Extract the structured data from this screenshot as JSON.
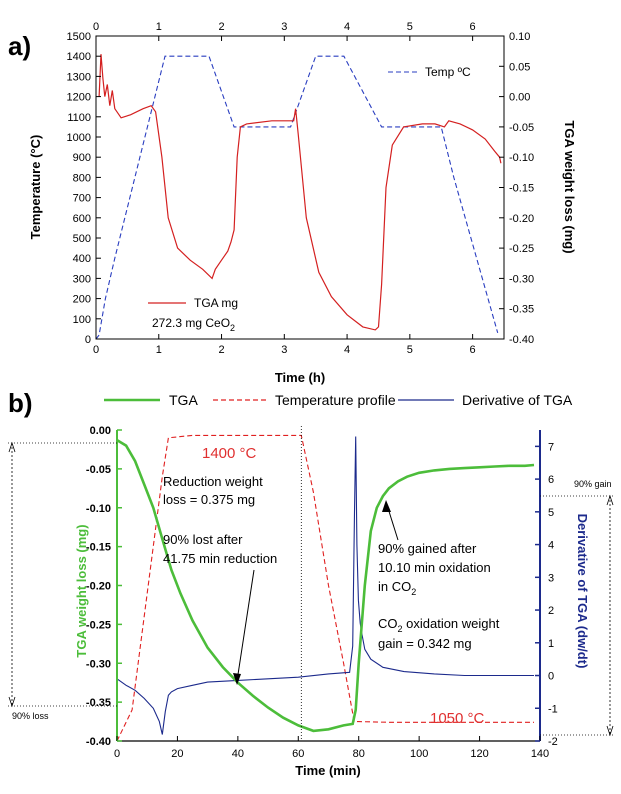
{
  "colors": {
    "tga_a": "#d42020",
    "temp": "#2a3ec0",
    "tga_b": "#4cbd3a",
    "temp_b": "#e02020",
    "deriv": "#1c2a8c"
  },
  "chart_data": [
    {
      "panel": "a)",
      "type": "line",
      "xlabel": "Time (h)",
      "ylabel": "Temperature (°C)",
      "y2label": "TGA weight loss (mg)",
      "xlim": [
        0,
        6.5
      ],
      "ylim": [
        0,
        1500
      ],
      "y2lim": [
        -0.4,
        0.1
      ],
      "x_ticks": [
        "0",
        "1",
        "2",
        "3",
        "4",
        "5",
        "6"
      ],
      "y_ticks": [
        "0",
        "100",
        "200",
        "300",
        "400",
        "500",
        "600",
        "700",
        "800",
        "900",
        "1000",
        "1100",
        "1200",
        "1300",
        "1400",
        "1500"
      ],
      "y2_ticks": [
        "0.10",
        "0.05",
        "0.00",
        "-0.05",
        "-0.10",
        "-0.15",
        "-0.20",
        "-0.25",
        "-0.30",
        "-0.35",
        "-0.40"
      ],
      "top_x_ticks": [
        "0",
        "1",
        "2",
        "3",
        "4",
        "5",
        "6"
      ],
      "legend": {
        "temp": "Temp ºC",
        "tga": "TGA mg",
        "sample": "272.3 mg CeO",
        "sample_sub": "2"
      },
      "series": [
        {
          "name": "Temp ºC",
          "axis": "left",
          "style": "dashed",
          "x": [
            0,
            0.05,
            0.15,
            0.3,
            1.1,
            1.8,
            2.2,
            2.5,
            3.1,
            3.5,
            3.95,
            4.55,
            4.9,
            5.5,
            5.7,
            6.4
          ],
          "y": [
            0,
            20,
            200,
            400,
            1400,
            1400,
            1050,
            1050,
            1050,
            1400,
            1400,
            1050,
            1050,
            1050,
            800,
            30
          ]
        },
        {
          "name": "TGA mg",
          "axis": "right",
          "x": [
            0.05,
            0.08,
            0.11,
            0.14,
            0.18,
            0.22,
            0.26,
            0.3,
            0.4,
            0.55,
            0.75,
            0.88,
            0.95,
            1.05,
            1.15,
            1.3,
            1.5,
            1.7,
            1.85,
            1.9,
            2.0,
            2.1,
            2.15,
            2.2,
            2.25,
            2.3,
            2.4,
            2.8,
            3.15,
            3.18,
            3.22,
            3.35,
            3.55,
            3.75,
            4.0,
            4.25,
            4.45,
            4.5,
            4.55,
            4.62,
            4.72,
            4.9,
            5.2,
            5.4,
            5.55,
            5.62,
            5.8,
            6.0,
            6.2,
            6.35,
            6.43,
            6.45
          ],
          "y": [
            0.0,
            0.07,
            0.03,
            0.0,
            0.02,
            -0.015,
            0.01,
            -0.02,
            -0.035,
            -0.03,
            -0.02,
            -0.015,
            -0.025,
            -0.1,
            -0.2,
            -0.25,
            -0.27,
            -0.285,
            -0.3,
            -0.285,
            -0.27,
            -0.255,
            -0.24,
            -0.22,
            -0.1,
            -0.05,
            -0.045,
            -0.04,
            -0.04,
            -0.02,
            -0.06,
            -0.2,
            -0.29,
            -0.33,
            -0.36,
            -0.38,
            -0.385,
            -0.38,
            -0.31,
            -0.15,
            -0.08,
            -0.05,
            -0.045,
            -0.045,
            -0.05,
            -0.04,
            -0.045,
            -0.055,
            -0.07,
            -0.09,
            -0.1,
            -0.11
          ]
        }
      ]
    },
    {
      "panel": "b)",
      "type": "line",
      "xlabel": "Time (min)",
      "ylabel": "TGA weight loss (mg)",
      "y2label": "Derivative of TGA (dw/dt)",
      "xlim": [
        0,
        140
      ],
      "ylim": [
        -0.4,
        0.0
      ],
      "y2lim": [
        -2,
        7.5
      ],
      "x_ticks": [
        "0",
        "20",
        "40",
        "60",
        "80",
        "100",
        "120",
        "140"
      ],
      "y_ticks": [
        "0.00",
        "-0.05",
        "-0.10",
        "-0.15",
        "-0.20",
        "-0.25",
        "-0.30",
        "-0.35",
        "-0.40"
      ],
      "y2_ticks": [
        "7",
        "6",
        "5",
        "4",
        "3",
        "2",
        "1",
        "0",
        "-1",
        "-2"
      ],
      "legend": [
        "TGA",
        "Temperature profile",
        "Derivative of TGA"
      ],
      "annotations": {
        "temp_high": "1400 °C",
        "temp_low": "1050 °C",
        "reduction_1": "Reduction weight",
        "reduction_2": "loss = 0.375 mg",
        "lost_1": "90% lost after",
        "lost_2": "41.75 min reduction",
        "gained_1": "90% gained after",
        "gained_2": "10.10 min oxidation",
        "gained_3": "in CO",
        "gained_3_sub": "2",
        "ox_1": "CO",
        "ox_1_sub": "2",
        "ox_1_rest": " oxidation weight",
        "ox_2": "gain = 0.342 mg",
        "gain_ref": "90% gain",
        "loss_ref": "90% loss"
      },
      "series": [
        {
          "name": "TGA",
          "axis": "left",
          "x": [
            0,
            3,
            6,
            9,
            12,
            15,
            18,
            21,
            25,
            30,
            35,
            40,
            45,
            50,
            55,
            60,
            65,
            70,
            75,
            78,
            79,
            80,
            82,
            84,
            86,
            88,
            90,
            93,
            96,
            100,
            105,
            110,
            115,
            120,
            125,
            130,
            135,
            138
          ],
          "y": [
            -0.013,
            -0.02,
            -0.04,
            -0.07,
            -0.1,
            -0.14,
            -0.18,
            -0.21,
            -0.245,
            -0.28,
            -0.305,
            -0.325,
            -0.342,
            -0.357,
            -0.37,
            -0.38,
            -0.387,
            -0.385,
            -0.38,
            -0.378,
            -0.36,
            -0.3,
            -0.2,
            -0.13,
            -0.1,
            -0.085,
            -0.075,
            -0.066,
            -0.06,
            -0.055,
            -0.052,
            -0.05,
            -0.049,
            -0.048,
            -0.047,
            -0.046,
            -0.046,
            -0.045
          ]
        },
        {
          "name": "Temperature profile",
          "axis": "left",
          "style": "dashed",
          "x": [
            0,
            5,
            15,
            17,
            25,
            40,
            61,
            65,
            70,
            75,
            78.5,
            80,
            90,
            110,
            138
          ],
          "y": [
            -0.4,
            -0.36,
            -0.06,
            -0.01,
            -0.007,
            -0.007,
            -0.007,
            -0.08,
            -0.2,
            -0.3,
            -0.375,
            -0.375,
            -0.376,
            -0.376,
            -0.376
          ]
        },
        {
          "name": "Derivative of TGA",
          "axis": "right",
          "x": [
            0,
            3,
            6,
            9,
            12,
            14,
            15,
            16,
            17,
            18,
            20,
            25,
            30,
            40,
            50,
            60,
            70,
            77,
            78,
            78.6,
            79,
            79.4,
            79.9,
            80.5,
            81,
            82,
            84,
            88,
            95,
            105,
            115,
            125,
            138
          ],
          "y": [
            -0.1,
            -0.3,
            -0.45,
            -0.7,
            -1.0,
            -1.4,
            -1.8,
            -1.1,
            -0.6,
            -0.5,
            -0.4,
            -0.3,
            -0.2,
            -0.15,
            -0.1,
            -0.05,
            0.05,
            0.1,
            0.9,
            5.0,
            7.3,
            4.0,
            2.3,
            1.6,
            1.3,
            0.8,
            0.5,
            0.25,
            0.12,
            0.05,
            0.0,
            0.0,
            0.0
          ]
        }
      ]
    }
  ]
}
